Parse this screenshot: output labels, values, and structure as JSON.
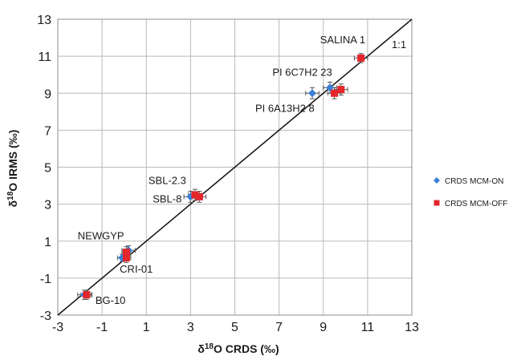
{
  "chart_data": {
    "type": "scatter",
    "xlabel": {
      "delta": "δ",
      "sup": "18",
      "rest": "O CRDS (‰)"
    },
    "ylabel": {
      "delta": "δ",
      "sup": "18",
      "rest": "O IRMS (‰)"
    },
    "xlim": [
      -3,
      13
    ],
    "ylim": [
      -3,
      13
    ],
    "x_ticks": [
      "-3",
      "-1",
      "1",
      "3",
      "5",
      "7",
      "9",
      "11",
      "13"
    ],
    "y_ticks": [
      "-3",
      "-1",
      "1",
      "3",
      "5",
      "7",
      "9",
      "11",
      "13"
    ],
    "grid": true,
    "line_label": "1:1",
    "legend_position": "right",
    "series": [
      {
        "name": "CRDS MCM-ON",
        "marker": "diamond",
        "color": "#3a7fd5",
        "points": [
          {
            "x": -1.8,
            "y": -1.9,
            "xerr": 0.3,
            "yerr": 0.25
          },
          {
            "x": -0.1,
            "y": 0.1,
            "xerr": 0.2,
            "yerr": 0.2
          },
          {
            "x": 0.2,
            "y": 0.5,
            "xerr": 0.3,
            "yerr": 0.25
          },
          {
            "x": 3.0,
            "y": 3.4,
            "xerr": 0.3,
            "yerr": 0.3
          },
          {
            "x": 8.5,
            "y": 9.0,
            "xerr": 0.3,
            "yerr": 0.3
          },
          {
            "x": 9.3,
            "y": 9.3,
            "xerr": 0.3,
            "yerr": 0.3
          }
        ]
      },
      {
        "name": "CRDS MCM-OFF",
        "marker": "square",
        "color": "#e3262b",
        "points": [
          {
            "x": -1.7,
            "y": -1.9,
            "xerr": 0.25,
            "yerr": 0.25
          },
          {
            "x": 0.1,
            "y": 0.1,
            "xerr": 0.2,
            "yerr": 0.25
          },
          {
            "x": 0.1,
            "y": 0.4,
            "xerr": 0.2,
            "yerr": 0.3
          },
          {
            "x": 3.2,
            "y": 3.5,
            "xerr": 0.3,
            "yerr": 0.3
          },
          {
            "x": 3.4,
            "y": 3.4,
            "xerr": 0.3,
            "yerr": 0.3
          },
          {
            "x": 9.5,
            "y": 9.0,
            "xerr": 0.3,
            "yerr": 0.3
          },
          {
            "x": 9.8,
            "y": 9.2,
            "xerr": 0.3,
            "yerr": 0.3
          },
          {
            "x": 10.7,
            "y": 10.9,
            "xerr": 0.3,
            "yerr": 0.25
          }
        ]
      }
    ],
    "annotations": [
      {
        "text": "SALINA 1",
        "x": 10.9,
        "y": 11.7,
        "anchor": "end"
      },
      {
        "text": "PI 6C7H2 23",
        "x": 9.4,
        "y": 9.95,
        "anchor": "end"
      },
      {
        "text": "PI 6A13H2 8",
        "x": 8.6,
        "y": 8.0,
        "anchor": "end"
      },
      {
        "text": "SBL-2.3",
        "x": 2.8,
        "y": 4.1,
        "anchor": "end"
      },
      {
        "text": "SBL-8",
        "x": 2.6,
        "y": 3.1,
        "anchor": "end"
      },
      {
        "text": "NEWGYP",
        "x": -2.1,
        "y": 1.1,
        "anchor": "start"
      },
      {
        "text": "CRI-01",
        "x": -0.2,
        "y": -0.7,
        "anchor": "start"
      },
      {
        "text": "BG-10",
        "x": -1.3,
        "y": -2.4,
        "anchor": "start"
      }
    ]
  }
}
